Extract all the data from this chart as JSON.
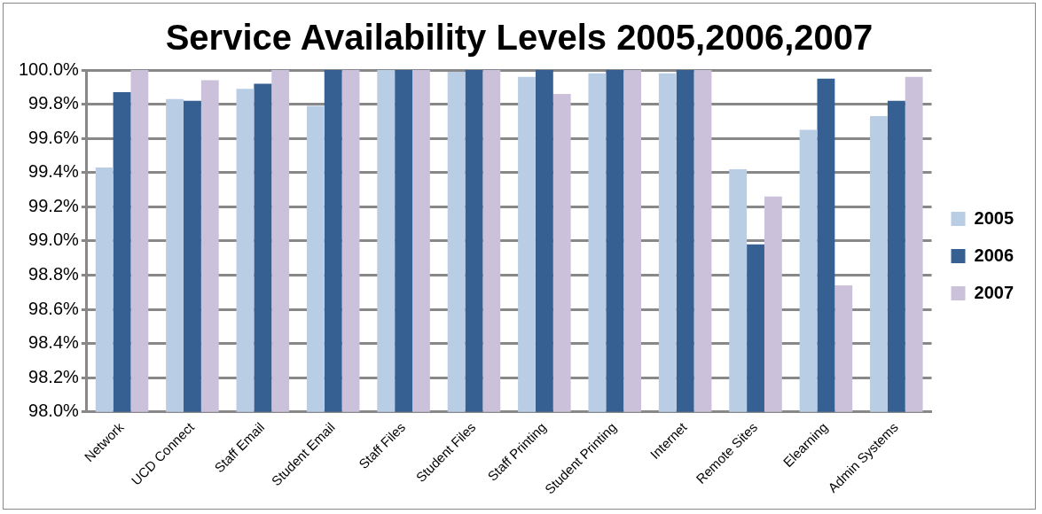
{
  "chart_data": {
    "type": "bar",
    "title": "Service Availability Levels 2005,2006,2007",
    "categories": [
      "Network",
      "UCD Connect",
      "Staff Email",
      "Student Email",
      "Staff Files",
      "Student Files",
      "Staff Printing",
      "Student Printing",
      "Internet",
      "Remote Sites",
      "Elearning",
      "Admin Systems"
    ],
    "series": [
      {
        "name": "2005",
        "color": "#b9cde5",
        "values": [
          99.43,
          99.83,
          99.89,
          99.79,
          100,
          99.99,
          99.96,
          99.98,
          99.98,
          99.42,
          99.65,
          99.73
        ]
      },
      {
        "name": "2006",
        "color": "#366092",
        "values": [
          99.87,
          99.82,
          99.92,
          100,
          100,
          100,
          100,
          100,
          100,
          98.98,
          99.95,
          99.82
        ]
      },
      {
        "name": "2007",
        "color": "#ccc1da",
        "values": [
          100,
          99.94,
          100,
          100,
          100,
          100,
          99.86,
          100,
          100,
          99.26,
          98.74,
          99.96
        ]
      }
    ],
    "ylim": [
      98,
      100
    ],
    "yticks": [
      {
        "value": 98,
        "label": "98.0%"
      },
      {
        "value": 98.2,
        "label": "98.2%"
      },
      {
        "value": 98.4,
        "label": "98.4%"
      },
      {
        "value": 98.6,
        "label": "98.6%"
      },
      {
        "value": 98.8,
        "label": "98.8%"
      },
      {
        "value": 99,
        "label": "99.0%"
      },
      {
        "value": 99.2,
        "label": "99.2%"
      },
      {
        "value": 99.4,
        "label": "99.4%"
      },
      {
        "value": 99.6,
        "label": "99.6%"
      },
      {
        "value": 99.8,
        "label": "99.8%"
      },
      {
        "value": 100,
        "label": "100.0%"
      }
    ],
    "grid": "y",
    "legend": "right"
  }
}
